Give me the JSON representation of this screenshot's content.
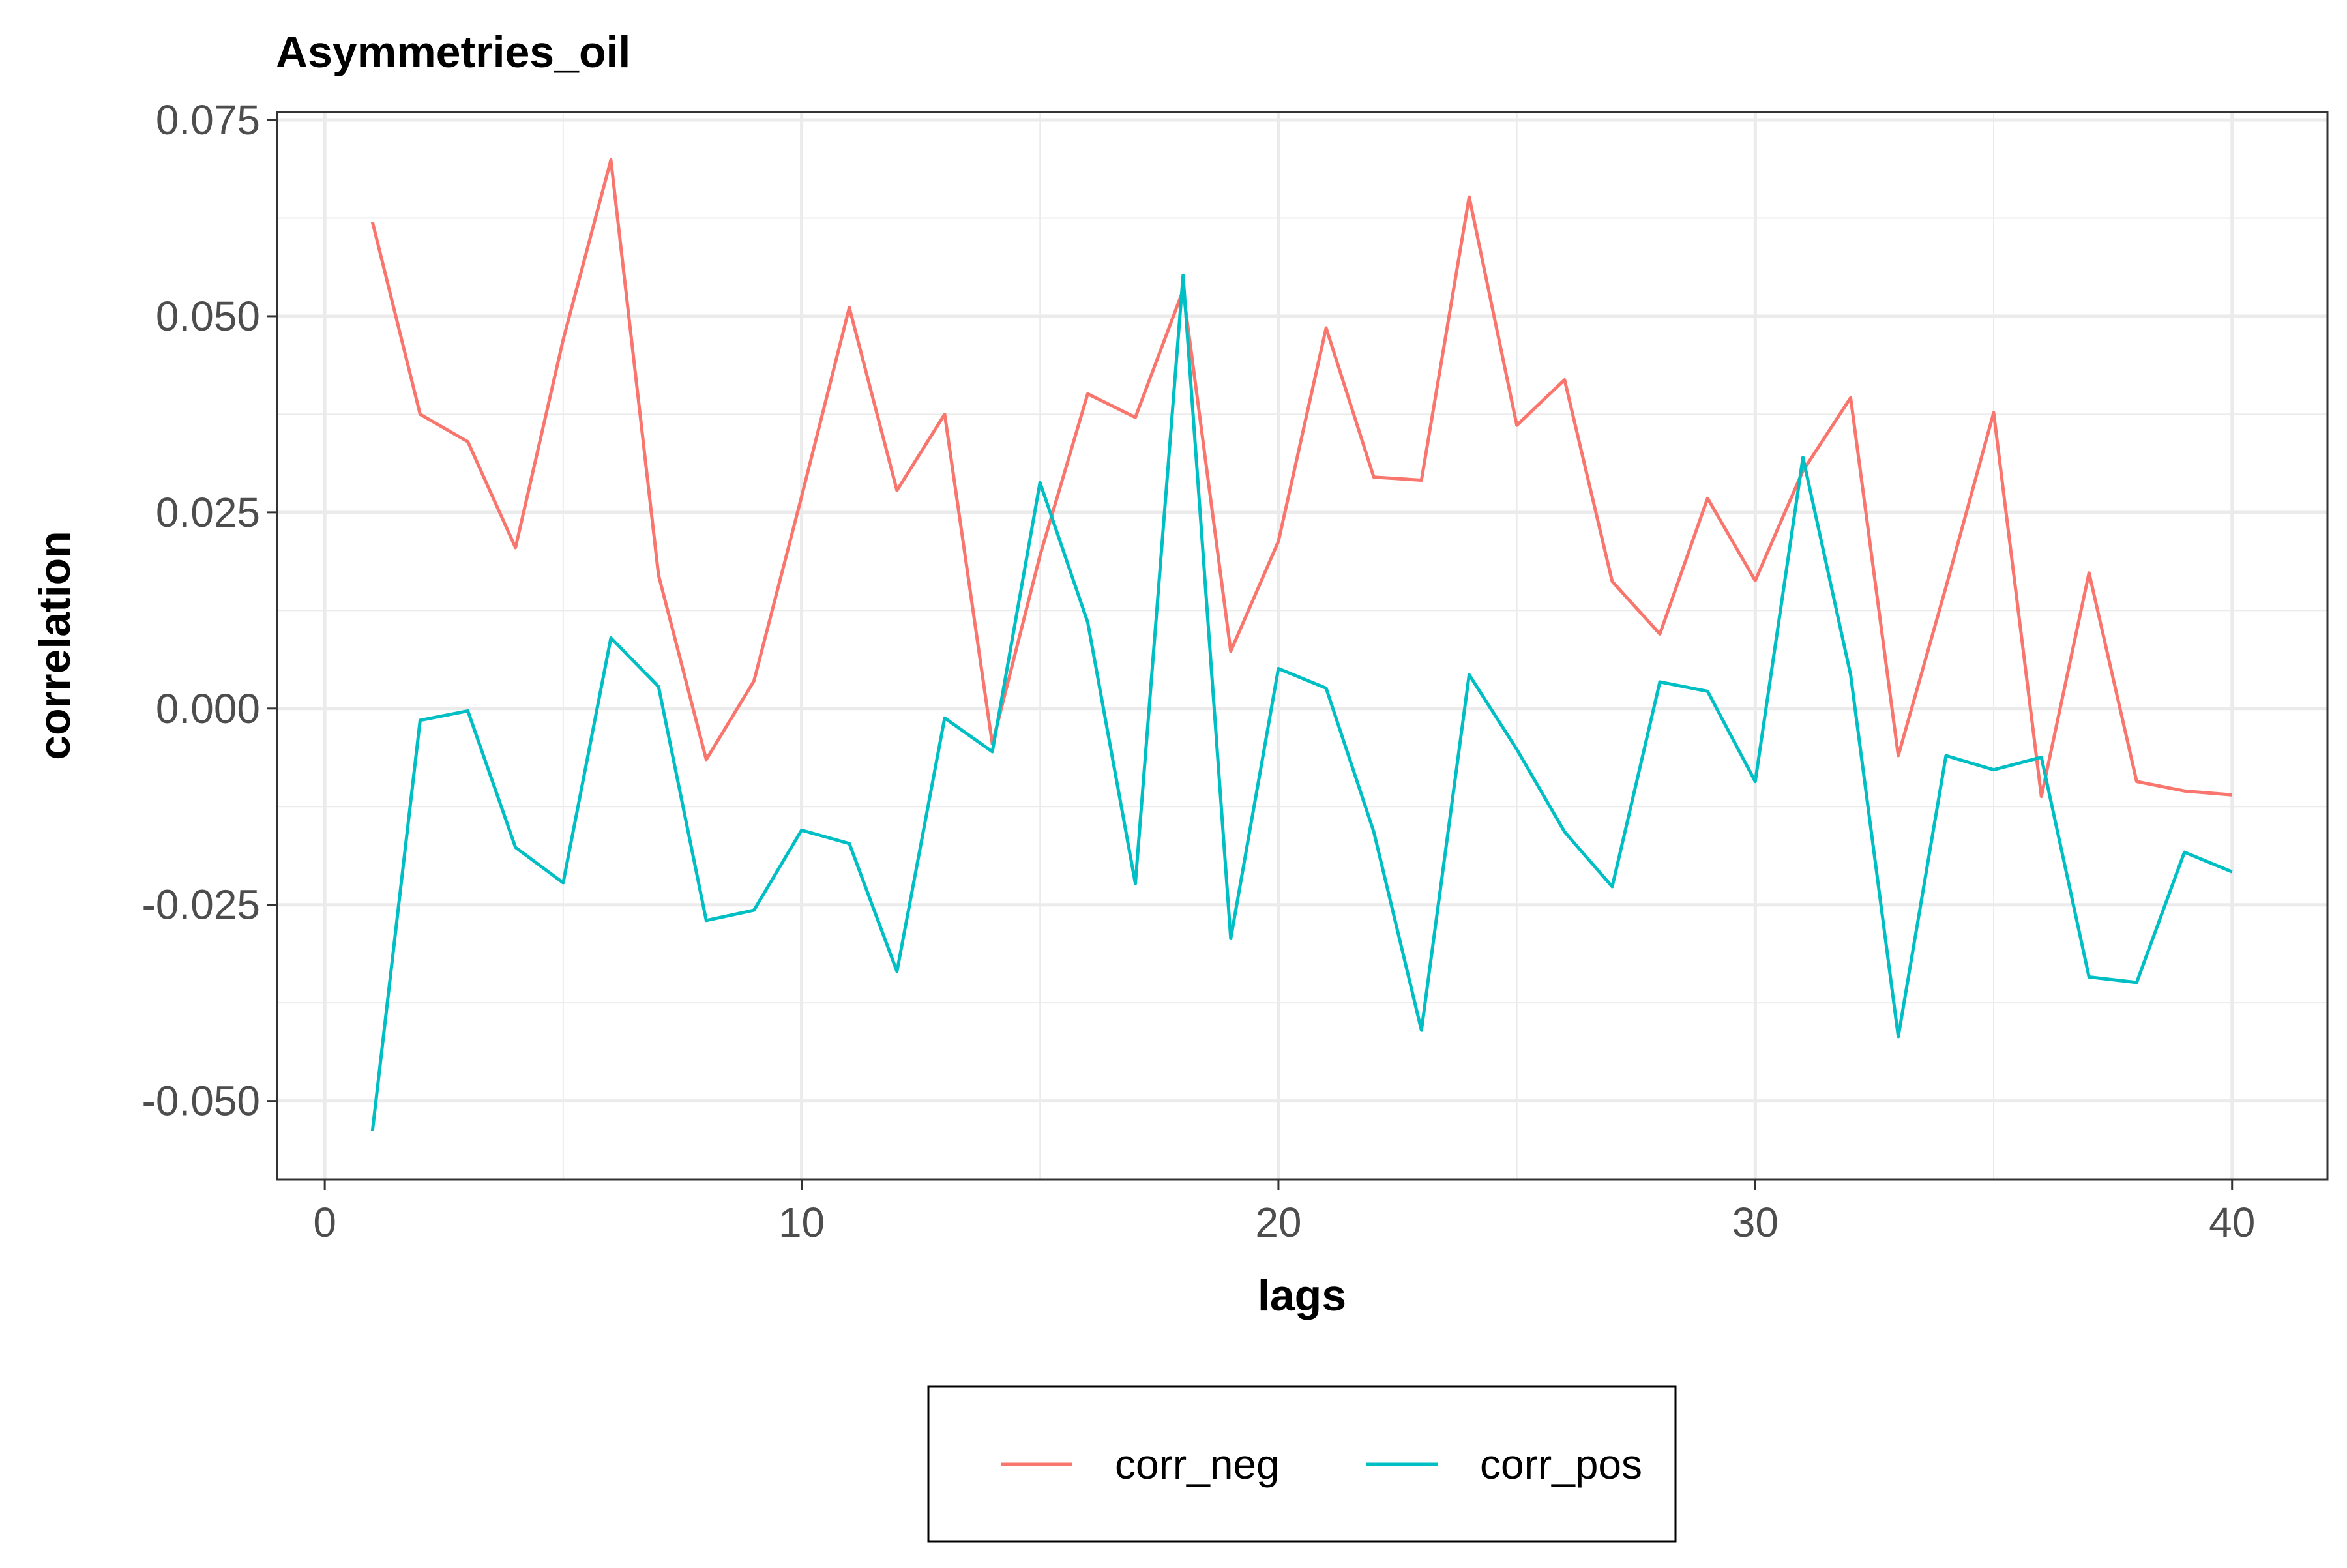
{
  "chart_data": {
    "type": "line",
    "title": "Asymmetries_oil",
    "xlabel": "lags",
    "ylabel": "correlation",
    "xlim": [
      -1,
      42
    ],
    "ylim": [
      -0.06,
      0.076
    ],
    "x_ticks": [
      0,
      10,
      20,
      30,
      40
    ],
    "x_tick_labels": [
      "0",
      "10",
      "20",
      "30",
      "40"
    ],
    "y_ticks": [
      -0.05,
      -0.025,
      0.0,
      0.025,
      0.05,
      0.075
    ],
    "y_tick_labels": [
      "-0.050",
      "-0.025",
      "0.000",
      "0.025",
      "0.050",
      "0.075"
    ],
    "grid": true,
    "legend_position": "bottom",
    "x": [
      1,
      2,
      3,
      4,
      5,
      6,
      7,
      8,
      9,
      10,
      11,
      12,
      13,
      14,
      15,
      16,
      17,
      18,
      19,
      20,
      21,
      22,
      23,
      24,
      25,
      26,
      27,
      28,
      29,
      30,
      31,
      32,
      33,
      34,
      35,
      36,
      37,
      38,
      39,
      40
    ],
    "series": [
      {
        "name": "corr_neg",
        "color": "#f8766d",
        "values": [
          0.062,
          0.0375,
          0.034,
          0.0205,
          0.047,
          0.0699,
          0.017,
          -0.0065,
          0.0035,
          0.027,
          0.0511,
          0.0278,
          0.0375,
          -0.0045,
          0.0195,
          0.0401,
          0.0371,
          0.0533,
          0.0073,
          0.0213,
          0.0485,
          0.0295,
          0.0291,
          0.0652,
          0.0361,
          0.0419,
          0.0162,
          0.0095,
          0.0268,
          0.0163,
          0.0303,
          0.0396,
          -0.006,
          0.0155,
          0.0377,
          -0.0112,
          0.0173,
          -0.0093,
          -0.0105,
          -0.011
        ]
      },
      {
        "name": "corr_pos",
        "color": "#00bfc4",
        "values": [
          -0.0538,
          -0.0015,
          -0.0003,
          -0.0177,
          -0.0222,
          0.009,
          0.0028,
          -0.027,
          -0.0257,
          -0.0155,
          -0.0172,
          -0.0335,
          -0.0012,
          -0.0055,
          0.0288,
          0.011,
          -0.0223,
          0.0552,
          -0.0293,
          0.0051,
          0.0026,
          -0.0157,
          -0.041,
          0.0043,
          -0.0052,
          -0.0157,
          -0.0227,
          0.0034,
          0.0022,
          -0.0093,
          0.032,
          0.0043,
          -0.0418,
          -0.006,
          -0.0078,
          -0.0062,
          -0.0342,
          -0.0349,
          -0.0183,
          -0.0208
        ]
      }
    ]
  }
}
